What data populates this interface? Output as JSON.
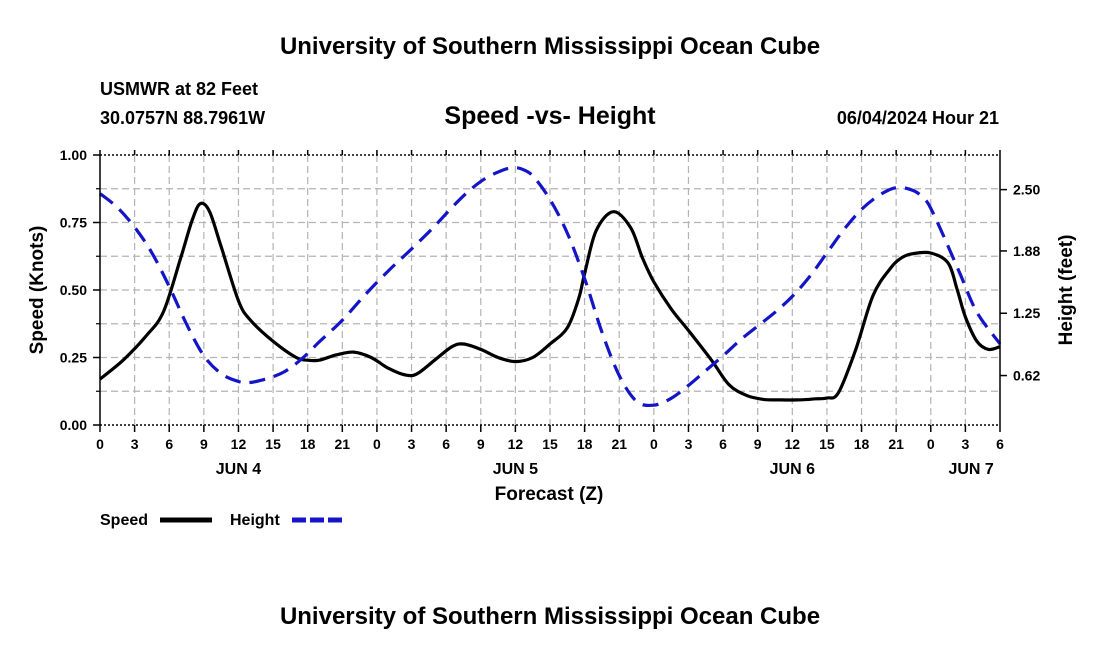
{
  "header": {
    "title": "University of Southern Mississippi Ocean Cube",
    "station": "USMWR at 82 Feet",
    "coords": "30.0757N  88.7961W",
    "chart_title": "Speed -vs- Height",
    "timestamp": "06/04/2024 Hour 21"
  },
  "footer": {
    "title": "University of Southern Mississippi Ocean Cube"
  },
  "colors": {
    "speed": "#000000",
    "height": "#1414c8",
    "grid": "#b4b4b4"
  },
  "chart_data": {
    "type": "line",
    "title": "Speed -vs- Height",
    "xlabel": "Forecast (Z)",
    "ylabel_left": "Speed (Knots)",
    "ylabel_right": "Height (feet)",
    "x_unit": "hours since 2024-06-04 00Z",
    "xlim": [
      0,
      78
    ],
    "ylim_left": [
      0,
      1.0
    ],
    "ylim_right": [
      0.12,
      2.85
    ],
    "x_ticks": [
      0,
      3,
      6,
      9,
      12,
      15,
      18,
      21,
      24,
      27,
      30,
      33,
      36,
      39,
      42,
      45,
      48,
      51,
      54,
      57,
      60,
      63,
      66,
      69,
      72,
      75,
      78
    ],
    "x_tick_labels": [
      "0",
      "3",
      "6",
      "9",
      "12",
      "15",
      "18",
      "21",
      "0",
      "3",
      "6",
      "9",
      "12",
      "15",
      "18",
      "21",
      "0",
      "3",
      "6",
      "9",
      "12",
      "15",
      "18",
      "21",
      "0",
      "3",
      "6"
    ],
    "y_left_ticks": [
      0.0,
      0.25,
      0.5,
      0.75,
      1.0
    ],
    "y_left_tick_labels": [
      "0.00",
      "0.25",
      "0.50",
      "0.75",
      "1.00"
    ],
    "y_right_ticks": [
      0.62,
      1.25,
      1.88,
      2.5
    ],
    "y_right_tick_labels": [
      "0.62",
      "1.25",
      "1.88",
      "2.50"
    ],
    "day_labels": [
      {
        "x": 12,
        "label": "JUN 4"
      },
      {
        "x": 36,
        "label": "JUN 5"
      },
      {
        "x": 60,
        "label": "JUN 6"
      },
      {
        "x": 75.5,
        "label": "JUN 7"
      }
    ],
    "legend": {
      "speed": "Speed",
      "height": "Height"
    },
    "series": [
      {
        "name": "Speed",
        "axis": "left",
        "style": "solid",
        "x": [
          0,
          2,
          4,
          5.5,
          7,
          8,
          8.7,
          9.5,
          10.5,
          12,
          13,
          15,
          17,
          18,
          19,
          20.5,
          22,
          23.5,
          25,
          26.5,
          27.5,
          29,
          30.5,
          31.5,
          33,
          34.5,
          36,
          37.5,
          39,
          40.5,
          41.5,
          42,
          43,
          44.5,
          46,
          47,
          48,
          49.5,
          51,
          53,
          54.5,
          56,
          57.5,
          59,
          60.5,
          61.5,
          62,
          63,
          64,
          65.5,
          67,
          68.5,
          69.5,
          70.5,
          72,
          73.5,
          74.3,
          75,
          76,
          77,
          78
        ],
        "values": [
          0.17,
          0.24,
          0.33,
          0.42,
          0.62,
          0.76,
          0.82,
          0.79,
          0.66,
          0.46,
          0.39,
          0.31,
          0.25,
          0.24,
          0.24,
          0.26,
          0.27,
          0.25,
          0.21,
          0.185,
          0.19,
          0.24,
          0.29,
          0.3,
          0.28,
          0.25,
          0.235,
          0.25,
          0.3,
          0.36,
          0.47,
          0.56,
          0.72,
          0.79,
          0.73,
          0.62,
          0.53,
          0.43,
          0.35,
          0.24,
          0.15,
          0.11,
          0.095,
          0.093,
          0.093,
          0.095,
          0.097,
          0.1,
          0.12,
          0.28,
          0.48,
          0.58,
          0.62,
          0.635,
          0.637,
          0.6,
          0.5,
          0.4,
          0.31,
          0.28,
          0.29
        ]
      },
      {
        "name": "Height",
        "axis": "right",
        "style": "dashed",
        "x": [
          0,
          1.5,
          3,
          4.5,
          6,
          7.5,
          9,
          10.5,
          12,
          13,
          14.5,
          16,
          17.5,
          19,
          21,
          23,
          25,
          27,
          29,
          30.5,
          32,
          33.5,
          35,
          35.8,
          36.5,
          37.5,
          39,
          40.5,
          42,
          43.5,
          45,
          46.5,
          48,
          49.5,
          51,
          52.5,
          54,
          55.5,
          57,
          58.5,
          60,
          61.5,
          63,
          64.5,
          66,
          67.5,
          69,
          70.5,
          71.5,
          72,
          73,
          74.5,
          76,
          78
        ],
        "values": [
          2.46,
          2.32,
          2.12,
          1.86,
          1.52,
          1.14,
          0.82,
          0.64,
          0.56,
          0.55,
          0.59,
          0.66,
          0.79,
          0.96,
          1.18,
          1.44,
          1.68,
          1.9,
          2.13,
          2.32,
          2.49,
          2.62,
          2.7,
          2.72,
          2.71,
          2.64,
          2.4,
          2.06,
          1.6,
          1.06,
          0.62,
          0.36,
          0.32,
          0.39,
          0.52,
          0.67,
          0.82,
          0.98,
          1.12,
          1.26,
          1.42,
          1.62,
          1.86,
          2.1,
          2.3,
          2.44,
          2.52,
          2.49,
          2.4,
          2.31,
          2.06,
          1.66,
          1.26,
          0.94
        ]
      }
    ]
  }
}
